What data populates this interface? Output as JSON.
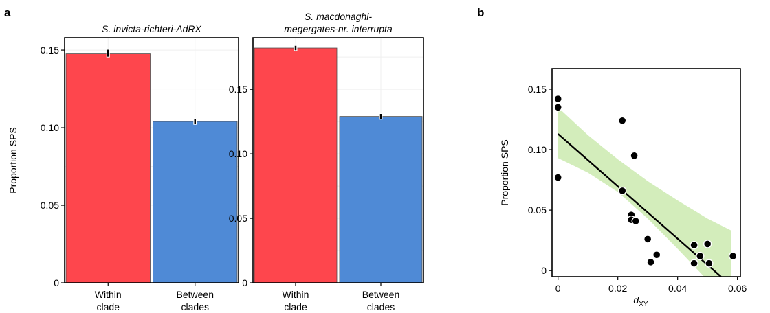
{
  "panel_labels": {
    "a": "a",
    "b": "b"
  },
  "colors": {
    "within": "#fe464d",
    "between": "#4f8ad6",
    "band": "#d3edbb",
    "line": "#000000",
    "point": "#000000"
  },
  "chart_data": [
    {
      "type": "bar",
      "panel": "a",
      "title": "S. invicta-richteri-AdRX",
      "title_lines": [
        "S. invicta-richteri-AdRX"
      ],
      "categories": [
        "Within clade",
        "Between clades"
      ],
      "category_lines": [
        [
          "Within",
          "clade"
        ],
        [
          "Between",
          "clades"
        ]
      ],
      "values": [
        0.148,
        0.104
      ],
      "errors": [
        0.0018,
        0.0012
      ],
      "ylabel": "Proportion SPS",
      "xlabel": "",
      "ylim": [
        0,
        0.158
      ],
      "yticks": [
        0,
        0.05,
        0.1,
        0.15
      ],
      "ytick_labels": [
        "0",
        "0.05",
        "0.10",
        "0.15"
      ],
      "grid": true
    },
    {
      "type": "bar",
      "panel": "a",
      "title": "S. macdonaghi-megergates-nr. interrupta",
      "title_lines": [
        "S. macdonaghi-",
        "megergates-nr. interrupta"
      ],
      "categories": [
        "Within clade",
        "Between clades"
      ],
      "category_lines": [
        [
          "Within",
          "clade"
        ],
        [
          "Between",
          "clades"
        ]
      ],
      "values": [
        0.182,
        0.129
      ],
      "errors": [
        0.0012,
        0.0014
      ],
      "ylabel": "",
      "xlabel": "",
      "ylim": [
        0,
        0.19
      ],
      "yticks": [
        0,
        0.05,
        0.1,
        0.15
      ],
      "ytick_labels": [
        "0",
        "0.05",
        "0.10",
        "0.15"
      ],
      "grid": true
    },
    {
      "type": "scatter",
      "panel": "b",
      "title": "",
      "xlabel_main": "d",
      "xlabel_sub": "XY",
      "ylabel": "Proportion SPS",
      "xlim": [
        -0.002,
        0.061
      ],
      "ylim": [
        -0.005,
        0.167
      ],
      "xticks": [
        0,
        0.02,
        0.04,
        0.06
      ],
      "xtick_labels": [
        "0",
        "0.02",
        "0.04",
        "0.06"
      ],
      "yticks": [
        0,
        0.05,
        0.1,
        0.15
      ],
      "ytick_labels": [
        "0",
        "0.05",
        "0.10",
        "0.15"
      ],
      "grid": false,
      "points": [
        [
          0.0,
          0.142
        ],
        [
          0.0,
          0.135
        ],
        [
          0.0,
          0.077
        ],
        [
          0.0215,
          0.124
        ],
        [
          0.0215,
          0.066
        ],
        [
          0.0255,
          0.095
        ],
        [
          0.0245,
          0.046
        ],
        [
          0.0245,
          0.042
        ],
        [
          0.026,
          0.041
        ],
        [
          0.03,
          0.026
        ],
        [
          0.031,
          0.007
        ],
        [
          0.033,
          0.013
        ],
        [
          0.0455,
          0.021
        ],
        [
          0.0455,
          0.006
        ],
        [
          0.0475,
          0.012
        ],
        [
          0.05,
          0.022
        ],
        [
          0.0505,
          0.006
        ],
        [
          0.0585,
          0.012
        ]
      ],
      "fit_line": [
        [
          0.0,
          0.113
        ],
        [
          0.0545,
          -0.005
        ]
      ],
      "confidence_band": {
        "x": [
          0.0,
          0.01,
          0.02,
          0.03,
          0.04,
          0.05,
          0.058
        ],
        "upper": [
          0.135,
          0.112,
          0.092,
          0.074,
          0.058,
          0.043,
          0.033
        ],
        "lower": [
          0.093,
          0.081,
          0.065,
          0.043,
          0.018,
          -0.008,
          -0.02
        ]
      }
    }
  ]
}
